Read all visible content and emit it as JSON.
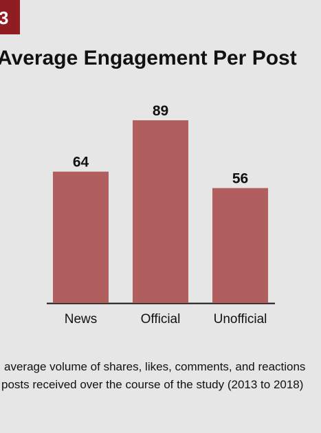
{
  "badge": "3",
  "chart_data": {
    "type": "bar",
    "title": "Average Engagement Per Post",
    "categories": [
      "News",
      "Official",
      "Unofficial"
    ],
    "values": [
      64,
      89,
      56
    ],
    "color": "#b05e5e"
  },
  "caption": [
    "average volume of shares, likes, comments, and reactions",
    "posts received over the course of the study (2013 to 2018)"
  ]
}
